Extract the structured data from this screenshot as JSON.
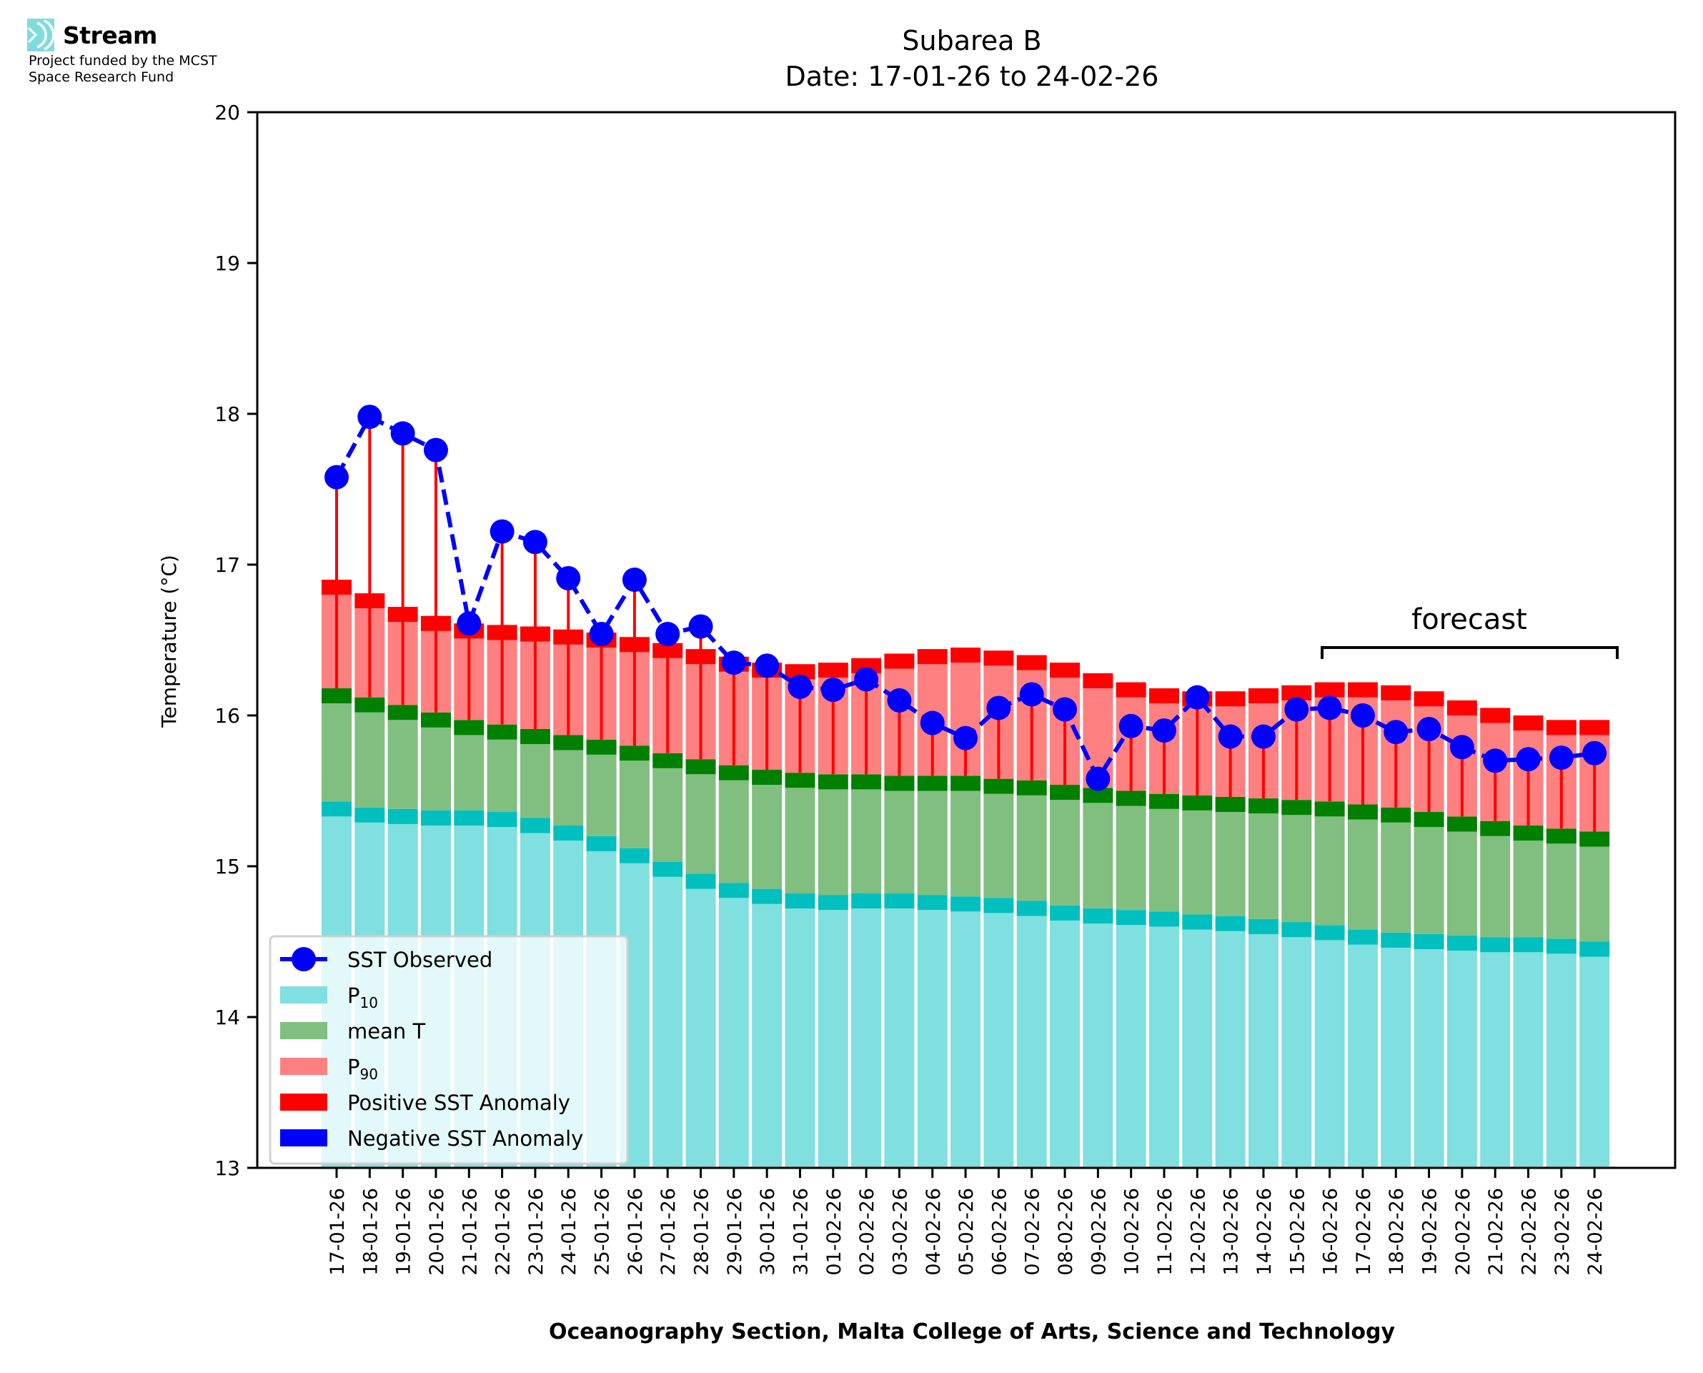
{
  "logo": {
    "icon": "stream-waves-icon",
    "name": "Stream",
    "subtitle_line1": "Project funded by the MCST",
    "subtitle_line2": "Space Research Fund"
  },
  "colors": {
    "p10": "#80dfdf",
    "p10_edge": "#00bfbf",
    "mean": "#80bf80",
    "mean_edge": "#008000",
    "p90": "#ff8080",
    "p90_edge": "#ff0000",
    "positive_anomaly": "#ff0000",
    "negative_anomaly": "#0000ff",
    "sst": "#0000ff"
  },
  "chart_data": {
    "type": "bar",
    "title": "Subarea B",
    "subtitle": "Date: 17-01-26 to 24-02-26",
    "xlabel": "Oceanography Section, Malta College of Arts, Science and Technology",
    "ylabel": "Temperature (°C)",
    "ylim": [
      13,
      20
    ],
    "yticks": [
      13,
      14,
      15,
      16,
      17,
      18,
      19,
      20
    ],
    "grid": false,
    "legend_position": "lower-left",
    "legend": [
      {
        "key": "sst",
        "label": "SST Observed",
        "sub": ""
      },
      {
        "key": "p10",
        "label": "P",
        "sub": "10"
      },
      {
        "key": "mean",
        "label": "mean T",
        "sub": ""
      },
      {
        "key": "p90",
        "label": "P",
        "sub": "90"
      },
      {
        "key": "positive_anomaly",
        "label": "Positive SST Anomaly",
        "sub": ""
      },
      {
        "key": "negative_anomaly",
        "label": "Negative SST Anomaly",
        "sub": ""
      }
    ],
    "annotation": {
      "text": "forecast",
      "from": "16-02-26",
      "to": "24-02-26"
    },
    "categories": [
      "17-01-26",
      "18-01-26",
      "19-01-26",
      "20-01-26",
      "21-01-26",
      "22-01-26",
      "23-01-26",
      "24-01-26",
      "25-01-26",
      "26-01-26",
      "27-01-26",
      "28-01-26",
      "29-01-26",
      "30-01-26",
      "31-01-26",
      "01-02-26",
      "02-02-26",
      "03-02-26",
      "04-02-26",
      "05-02-26",
      "06-02-26",
      "07-02-26",
      "08-02-26",
      "09-02-26",
      "10-02-26",
      "11-02-26",
      "12-02-26",
      "13-02-26",
      "14-02-26",
      "15-02-26",
      "16-02-26",
      "17-02-26",
      "18-02-26",
      "19-02-26",
      "20-02-26",
      "21-02-26",
      "22-02-26",
      "23-02-26",
      "24-02-26"
    ],
    "series": [
      {
        "name": "P10",
        "key": "p10",
        "values": [
          15.33,
          15.29,
          15.28,
          15.27,
          15.27,
          15.26,
          15.22,
          15.17,
          15.1,
          15.02,
          14.93,
          14.85,
          14.79,
          14.75,
          14.72,
          14.71,
          14.72,
          14.72,
          14.71,
          14.7,
          14.69,
          14.67,
          14.64,
          14.62,
          14.61,
          14.6,
          14.58,
          14.57,
          14.55,
          14.53,
          14.51,
          14.48,
          14.46,
          14.45,
          14.44,
          14.43,
          14.43,
          14.42,
          14.4
        ]
      },
      {
        "name": "mean T",
        "key": "mean",
        "values": [
          16.08,
          16.02,
          15.97,
          15.92,
          15.87,
          15.84,
          15.81,
          15.77,
          15.74,
          15.7,
          15.65,
          15.61,
          15.57,
          15.54,
          15.52,
          15.51,
          15.51,
          15.5,
          15.5,
          15.5,
          15.48,
          15.47,
          15.44,
          15.42,
          15.4,
          15.38,
          15.37,
          15.36,
          15.35,
          15.34,
          15.33,
          15.31,
          15.29,
          15.26,
          15.23,
          15.2,
          15.17,
          15.15,
          15.13
        ]
      },
      {
        "name": "P90",
        "key": "p90",
        "values": [
          16.8,
          16.71,
          16.62,
          16.56,
          16.51,
          16.5,
          16.49,
          16.47,
          16.45,
          16.42,
          16.38,
          16.34,
          16.29,
          16.25,
          16.24,
          16.25,
          16.28,
          16.31,
          16.34,
          16.35,
          16.33,
          16.3,
          16.25,
          16.18,
          16.12,
          16.08,
          16.06,
          16.06,
          16.08,
          16.1,
          16.12,
          16.12,
          16.1,
          16.06,
          16.0,
          15.95,
          15.9,
          15.87,
          15.87
        ]
      },
      {
        "name": "SST Observed",
        "key": "sst",
        "values": [
          17.58,
          17.98,
          17.87,
          17.76,
          16.61,
          17.22,
          17.15,
          16.91,
          16.54,
          16.9,
          16.54,
          16.59,
          16.35,
          16.33,
          16.19,
          16.17,
          16.24,
          16.1,
          15.95,
          15.85,
          16.05,
          16.14,
          16.04,
          15.58,
          15.93,
          15.9,
          16.12,
          15.86,
          15.86,
          16.04,
          16.05,
          16.0,
          15.89,
          15.91,
          15.79,
          15.7,
          15.71,
          15.72,
          15.75
        ]
      }
    ]
  }
}
